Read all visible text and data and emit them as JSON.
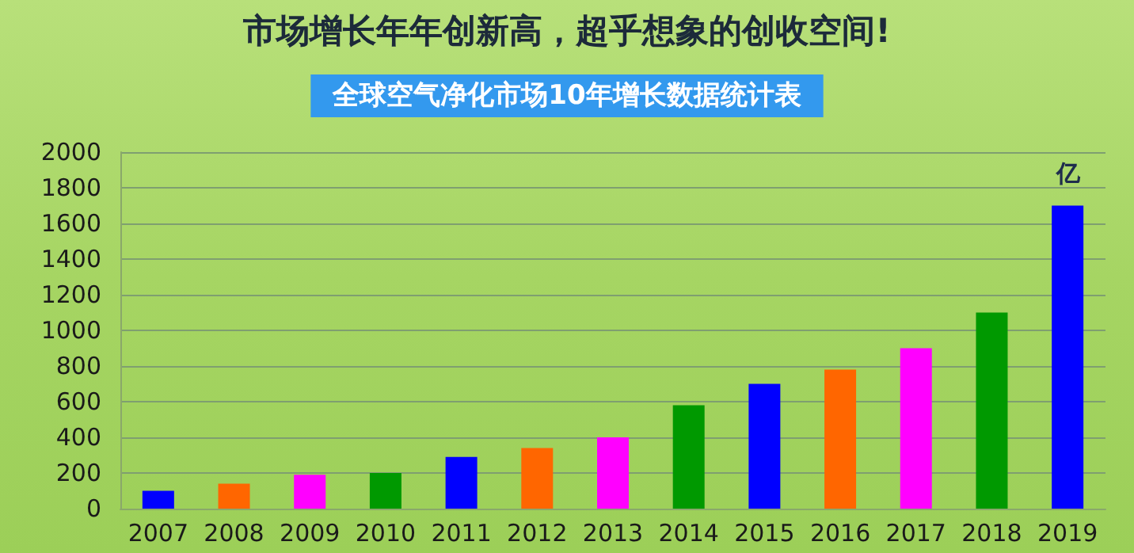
{
  "chart_data": {
    "type": "bar",
    "title": "市场增长年年创新高，超乎想象的创收空间!",
    "subtitle": "全球空气净化市场10年增长数据统计表",
    "categories": [
      "2007",
      "2008",
      "2009",
      "2010",
      "2011",
      "2012",
      "2013",
      "2014",
      "2015",
      "2016",
      "2017",
      "2018",
      "2019"
    ],
    "values": [
      100,
      140,
      190,
      200,
      290,
      340,
      400,
      580,
      700,
      780,
      900,
      1100,
      1700
    ],
    "colors": [
      "#0000ff",
      "#ff6600",
      "#ff00ff",
      "#009900",
      "#0000ff",
      "#ff6600",
      "#ff00ff",
      "#009900",
      "#0000ff",
      "#ff6600",
      "#ff00ff",
      "#009900",
      "#0000ff"
    ],
    "annotations": [
      "亿"
    ],
    "ylim": [
      0,
      2000
    ],
    "yticks": [
      0,
      200,
      400,
      600,
      800,
      1000,
      1200,
      1400,
      1600,
      1800,
      2000
    ],
    "grid": "y"
  }
}
